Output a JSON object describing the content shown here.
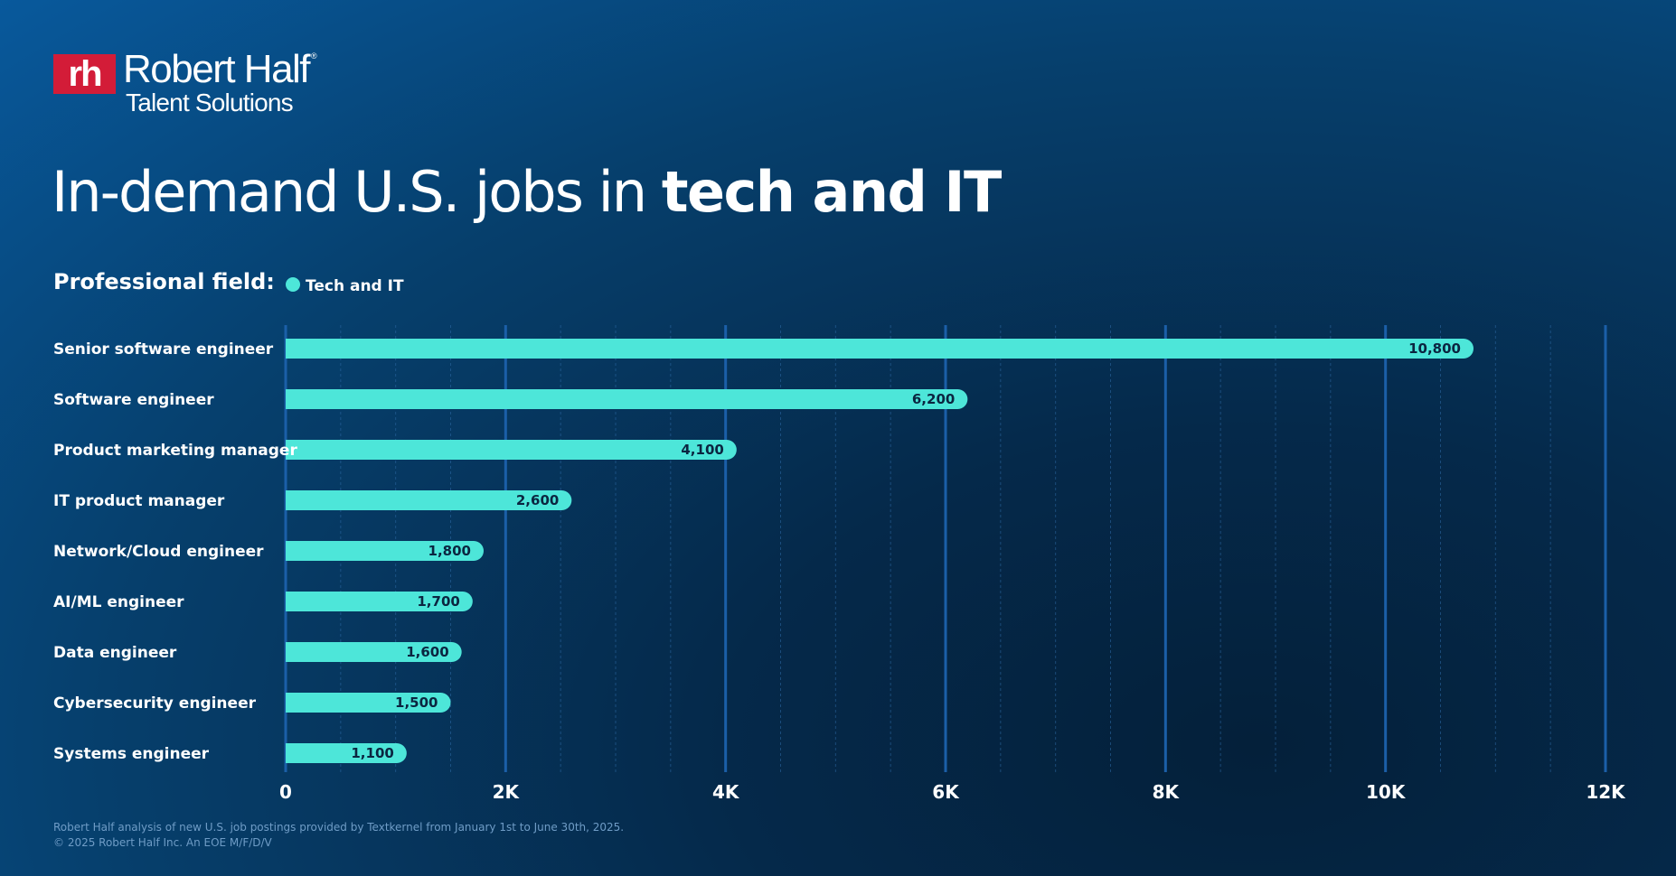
{
  "brand": {
    "logo_mark": "rh",
    "name": "Robert Half",
    "registered": "®",
    "subname": "Talent Solutions",
    "accent_color": "#d31c38"
  },
  "title": {
    "prefix": "In-demand U.S. jobs in ",
    "bold": "tech and IT"
  },
  "legend": {
    "title": "Professional field:",
    "items": [
      {
        "label": "Tech and IT",
        "color": "#4de6d9"
      }
    ]
  },
  "chart_data": {
    "type": "bar",
    "orientation": "horizontal",
    "series": [
      {
        "name": "Tech and IT",
        "color": "#4de6d9",
        "values": [
          10800,
          6200,
          4100,
          2600,
          1800,
          1700,
          1600,
          1500,
          1100
        ]
      }
    ],
    "categories": [
      "Senior software engineer",
      "Software engineer",
      "Product marketing manager",
      "IT product manager",
      "Network/Cloud engineer",
      "AI/ML engineer",
      "Data engineer",
      "Cybersecurity engineer",
      "Systems engineer"
    ],
    "value_labels": [
      "10,800",
      "6,200",
      "4,100",
      "2,600",
      "1,800",
      "1,700",
      "1,600",
      "1,500",
      "1,100"
    ],
    "xlim": [
      0,
      12000
    ],
    "ticks": [
      0,
      2000,
      4000,
      6000,
      8000,
      10000,
      12000
    ],
    "tick_labels": [
      "0",
      "2K",
      "4K",
      "6K",
      "8K",
      "10K",
      "12K"
    ],
    "minor_tick_step": 500,
    "grid": true,
    "title": "In-demand U.S. jobs in tech and IT",
    "legend_position": "top-left"
  },
  "footer": {
    "source": "Robert Half analysis of new U.S. job postings provided by Textkernel from January 1st to June 30th, 2025.",
    "copyright": "© 2025 Robert Half Inc. An EOE M/F/D/V"
  }
}
